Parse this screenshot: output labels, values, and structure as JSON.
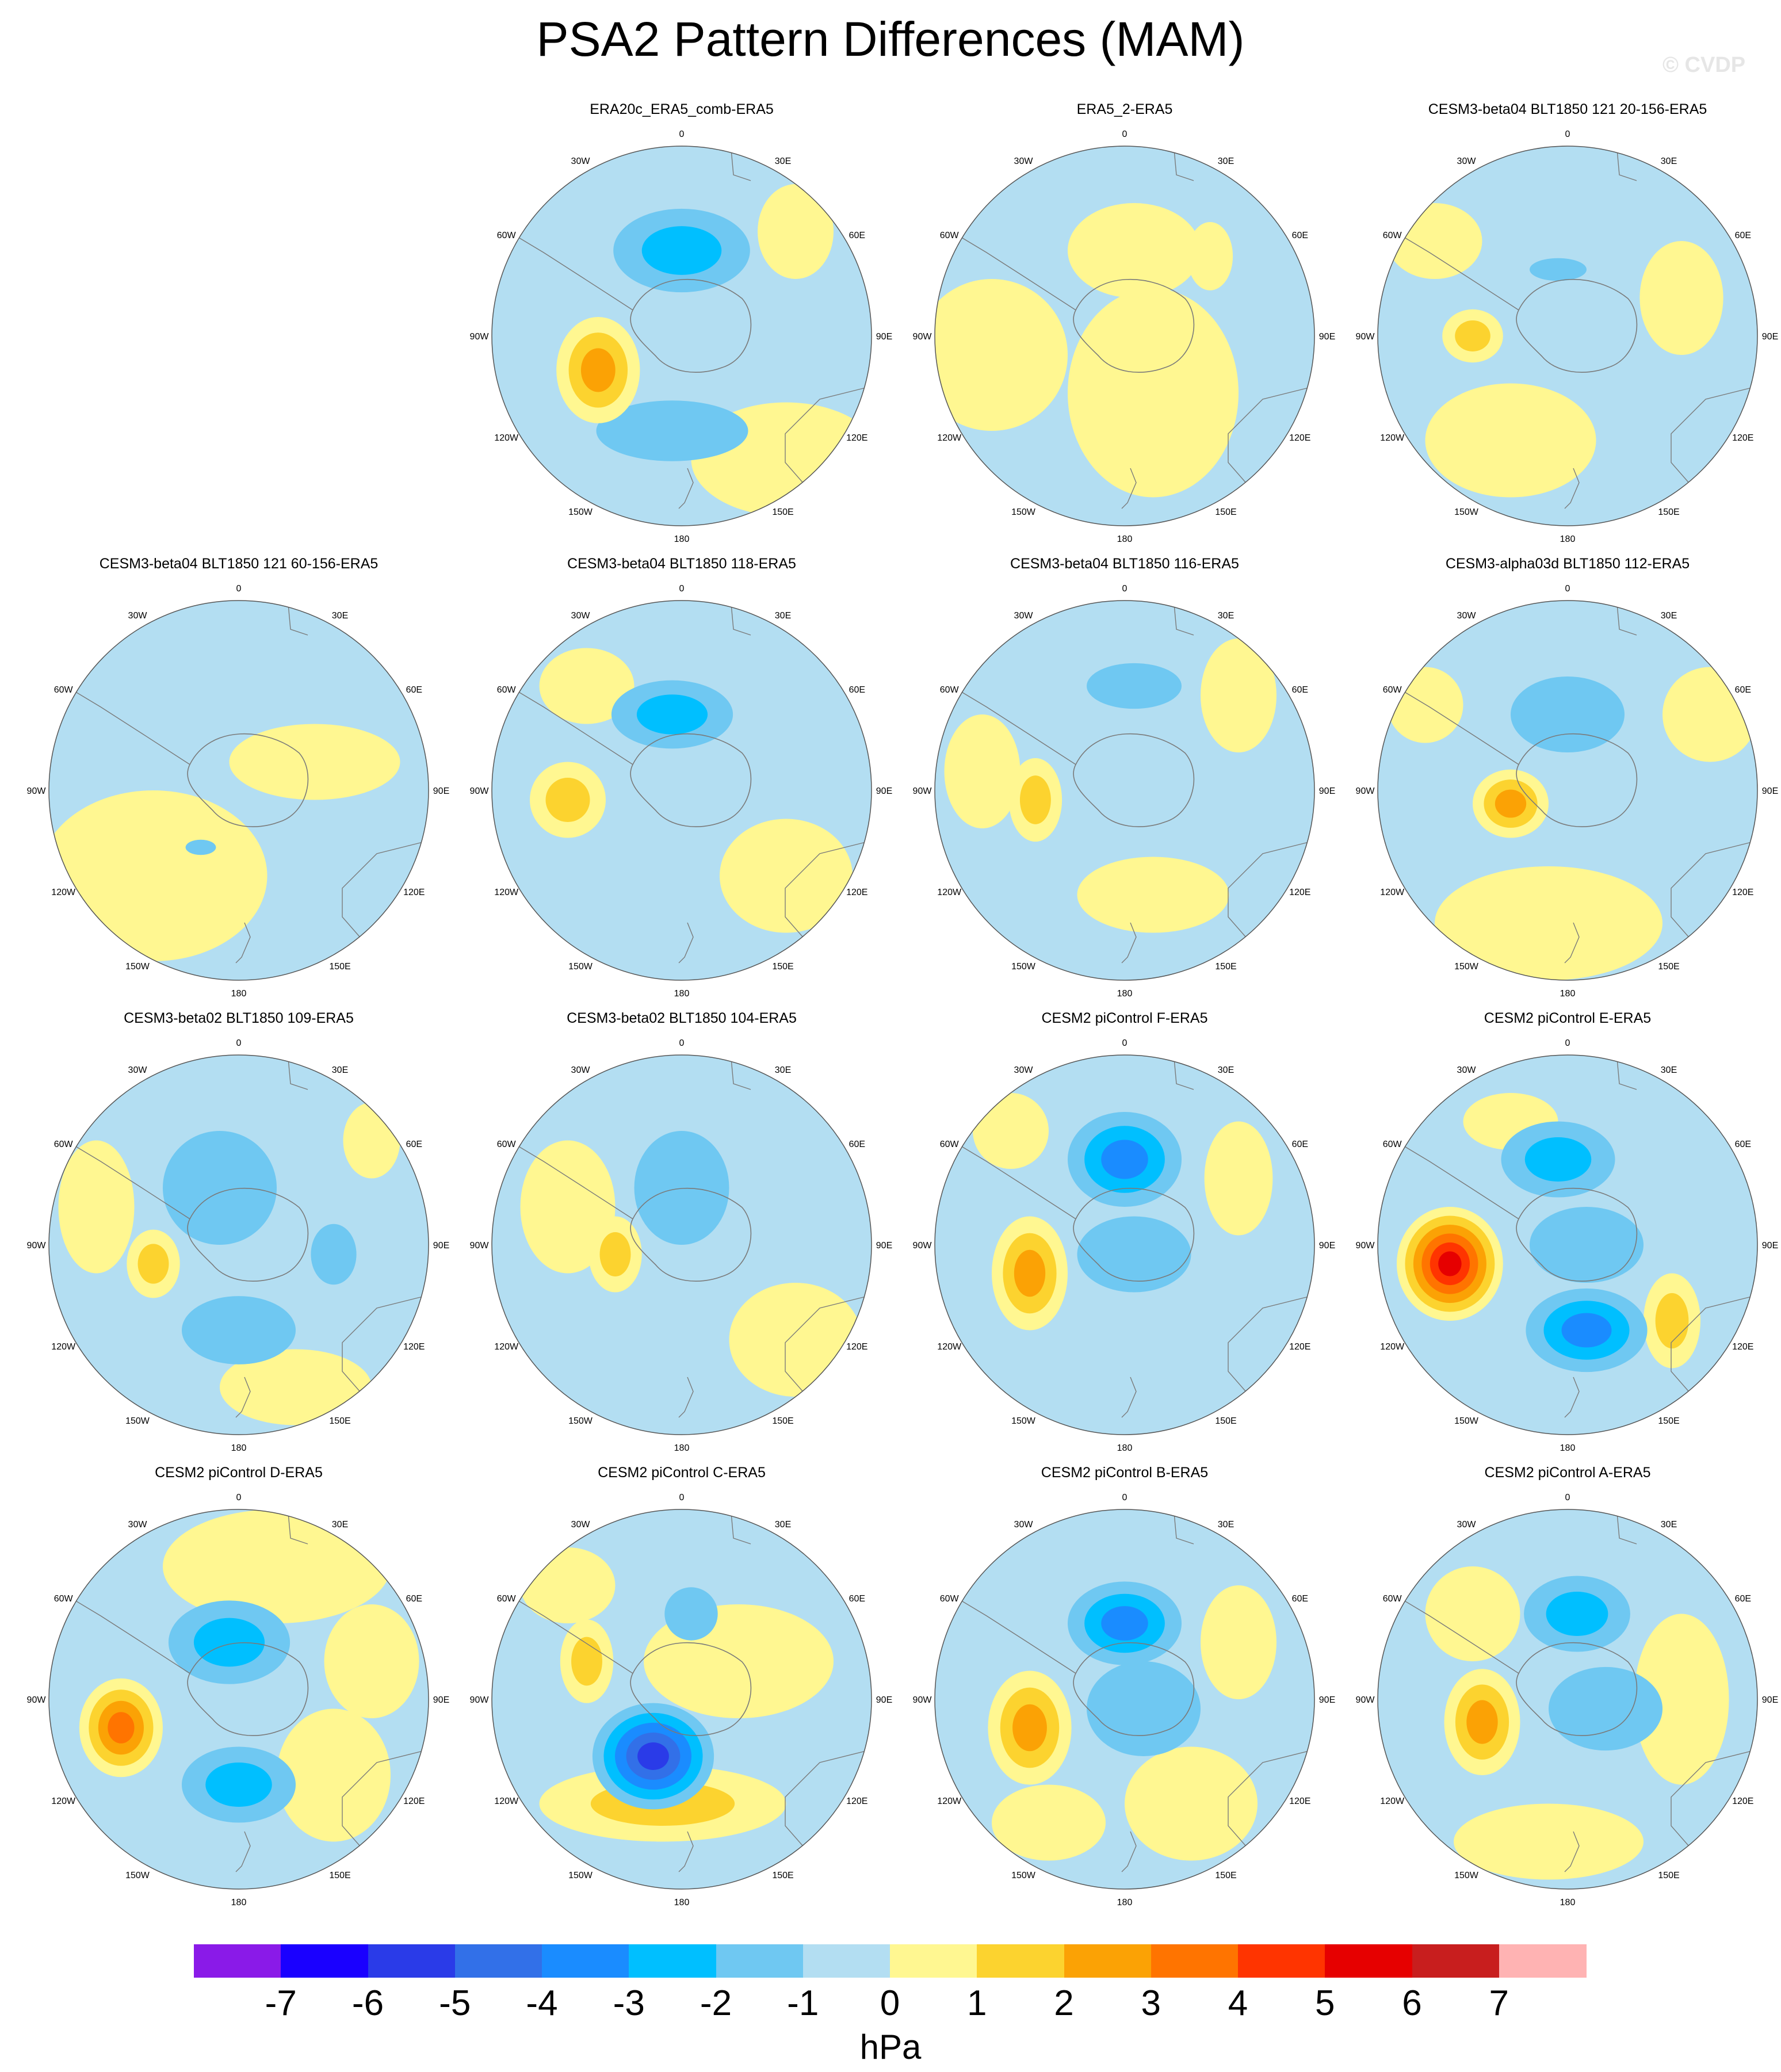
{
  "title": "PSA2 Pattern Differences (MAM)",
  "watermark": "© CVDP",
  "lon_labels": [
    "0",
    "30E",
    "60E",
    "90E",
    "120E",
    "150E",
    "180",
    "150W",
    "120W",
    "90W",
    "60W",
    "30W"
  ],
  "panels": [
    {
      "title": "ERA20c_ERA5_comb-ERA5",
      "blobs": [
        {
          "dx": 0.0,
          "dy": -0.45,
          "rx": 0.36,
          "ry": 0.22,
          "lvl": -2
        },
        {
          "dx": -0.44,
          "dy": 0.18,
          "rx": 0.22,
          "ry": 0.28,
          "lvl": 3
        },
        {
          "dx": -0.05,
          "dy": 0.5,
          "rx": 0.4,
          "ry": 0.16,
          "lvl": -1.5
        },
        {
          "dx": 0.55,
          "dy": 0.65,
          "rx": 0.5,
          "ry": 0.3,
          "lvl": 0.5
        },
        {
          "dx": 0.6,
          "dy": -0.55,
          "rx": 0.2,
          "ry": 0.25,
          "lvl": 0.5
        }
      ]
    },
    {
      "title": "ERA5_2-ERA5",
      "blobs": [
        {
          "dx": -0.7,
          "dy": 0.1,
          "rx": 0.4,
          "ry": 0.4,
          "lvl": 0.5
        },
        {
          "dx": 0.15,
          "dy": 0.3,
          "rx": 0.45,
          "ry": 0.55,
          "lvl": 0.5
        },
        {
          "dx": 0.05,
          "dy": -0.45,
          "rx": 0.35,
          "ry": 0.25,
          "lvl": 0.5
        },
        {
          "dx": 0.45,
          "dy": -0.42,
          "rx": 0.12,
          "ry": 0.18,
          "lvl": 0.5
        }
      ]
    },
    {
      "title": "CESM3-beta04 BLT1850 121 20-156-ERA5",
      "blobs": [
        {
          "dx": -0.5,
          "dy": 0.0,
          "rx": 0.16,
          "ry": 0.14,
          "lvl": 1.5
        },
        {
          "dx": -0.3,
          "dy": 0.55,
          "rx": 0.45,
          "ry": 0.3,
          "lvl": 0.5
        },
        {
          "dx": 0.6,
          "dy": -0.2,
          "rx": 0.22,
          "ry": 0.3,
          "lvl": 0.5
        },
        {
          "dx": -0.7,
          "dy": -0.5,
          "rx": 0.25,
          "ry": 0.2,
          "lvl": 0.5
        },
        {
          "dx": -0.05,
          "dy": -0.35,
          "rx": 0.15,
          "ry": 0.06,
          "lvl": -1.5
        }
      ]
    },
    {
      "title": "CESM3-beta04 BLT1850 121 60-156-ERA5",
      "blobs": [
        {
          "dx": -0.45,
          "dy": 0.45,
          "rx": 0.6,
          "ry": 0.45,
          "lvl": 0.5
        },
        {
          "dx": 0.4,
          "dy": -0.15,
          "rx": 0.45,
          "ry": 0.2,
          "lvl": 0.5
        },
        {
          "dx": -0.2,
          "dy": 0.3,
          "rx": 0.08,
          "ry": 0.04,
          "lvl": -1.5
        }
      ]
    },
    {
      "title": "CESM3-beta04 BLT1850 118-ERA5",
      "blobs": [
        {
          "dx": -0.05,
          "dy": -0.4,
          "rx": 0.32,
          "ry": 0.18,
          "lvl": -2
        },
        {
          "dx": -0.6,
          "dy": 0.05,
          "rx": 0.2,
          "ry": 0.2,
          "lvl": 1.5
        },
        {
          "dx": 0.55,
          "dy": 0.45,
          "rx": 0.35,
          "ry": 0.3,
          "lvl": 0.5
        },
        {
          "dx": -0.5,
          "dy": -0.55,
          "rx": 0.25,
          "ry": 0.2,
          "lvl": 0.5
        }
      ]
    },
    {
      "title": "CESM3-beta04 BLT1850 116-ERA5",
      "blobs": [
        {
          "dx": 0.05,
          "dy": -0.55,
          "rx": 0.25,
          "ry": 0.12,
          "lvl": -1.5
        },
        {
          "dx": -0.47,
          "dy": 0.05,
          "rx": 0.14,
          "ry": 0.22,
          "lvl": 1.5
        },
        {
          "dx": 0.15,
          "dy": 0.55,
          "rx": 0.4,
          "ry": 0.2,
          "lvl": 0.5
        },
        {
          "dx": -0.75,
          "dy": -0.1,
          "rx": 0.2,
          "ry": 0.3,
          "lvl": 0.5
        },
        {
          "dx": 0.6,
          "dy": -0.5,
          "rx": 0.2,
          "ry": 0.3,
          "lvl": 0.5
        }
      ]
    },
    {
      "title": "CESM3-alpha03d BLT1850 112-ERA5",
      "blobs": [
        {
          "dx": 0.0,
          "dy": -0.4,
          "rx": 0.3,
          "ry": 0.2,
          "lvl": -1.5
        },
        {
          "dx": -0.3,
          "dy": 0.07,
          "rx": 0.2,
          "ry": 0.18,
          "lvl": 2.5
        },
        {
          "dx": -0.1,
          "dy": 0.7,
          "rx": 0.6,
          "ry": 0.3,
          "lvl": 0.5
        },
        {
          "dx": 0.75,
          "dy": -0.4,
          "rx": 0.25,
          "ry": 0.25,
          "lvl": 0.5
        },
        {
          "dx": -0.75,
          "dy": -0.45,
          "rx": 0.2,
          "ry": 0.2,
          "lvl": 0.5
        }
      ]
    },
    {
      "title": "CESM3-beta02 BLT1850 109-ERA5",
      "blobs": [
        {
          "dx": -0.1,
          "dy": -0.3,
          "rx": 0.3,
          "ry": 0.3,
          "lvl": -1.5
        },
        {
          "dx": -0.45,
          "dy": 0.1,
          "rx": 0.14,
          "ry": 0.18,
          "lvl": 1.5
        },
        {
          "dx": 0.0,
          "dy": 0.45,
          "rx": 0.3,
          "ry": 0.18,
          "lvl": -1.5
        },
        {
          "dx": 0.5,
          "dy": 0.05,
          "rx": 0.12,
          "ry": 0.16,
          "lvl": -1.5
        },
        {
          "dx": -0.75,
          "dy": -0.2,
          "rx": 0.2,
          "ry": 0.35,
          "lvl": 0.5
        },
        {
          "dx": 0.3,
          "dy": 0.75,
          "rx": 0.4,
          "ry": 0.2,
          "lvl": 0.5
        },
        {
          "dx": 0.7,
          "dy": -0.55,
          "rx": 0.15,
          "ry": 0.2,
          "lvl": 0.5
        }
      ]
    },
    {
      "title": "CESM3-beta02 BLT1850 104-ERA5",
      "blobs": [
        {
          "dx": 0.0,
          "dy": -0.3,
          "rx": 0.25,
          "ry": 0.3,
          "lvl": -1.5
        },
        {
          "dx": -0.35,
          "dy": 0.05,
          "rx": 0.14,
          "ry": 0.2,
          "lvl": 1.5
        },
        {
          "dx": 0.6,
          "dy": 0.5,
          "rx": 0.35,
          "ry": 0.3,
          "lvl": 0.5
        },
        {
          "dx": -0.6,
          "dy": -0.2,
          "rx": 0.25,
          "ry": 0.35,
          "lvl": 0.5
        }
      ]
    },
    {
      "title": "CESM2 piControl F-ERA5",
      "blobs": [
        {
          "dx": 0.0,
          "dy": -0.45,
          "rx": 0.3,
          "ry": 0.25,
          "lvl": -3.5
        },
        {
          "dx": -0.5,
          "dy": 0.15,
          "rx": 0.2,
          "ry": 0.3,
          "lvl": 2.5
        },
        {
          "dx": 0.05,
          "dy": 0.05,
          "rx": 0.3,
          "ry": 0.2,
          "lvl": -1.5
        },
        {
          "dx": 0.6,
          "dy": -0.35,
          "rx": 0.18,
          "ry": 0.3,
          "lvl": 0.5
        },
        {
          "dx": -0.6,
          "dy": -0.6,
          "rx": 0.2,
          "ry": 0.2,
          "lvl": 0.5
        }
      ]
    },
    {
      "title": "CESM2 piControl E-ERA5",
      "blobs": [
        {
          "dx": -0.62,
          "dy": 0.1,
          "rx": 0.28,
          "ry": 0.3,
          "lvl": 5.5
        },
        {
          "dx": -0.05,
          "dy": -0.45,
          "rx": 0.3,
          "ry": 0.2,
          "lvl": -2.5
        },
        {
          "dx": 0.1,
          "dy": 0.45,
          "rx": 0.32,
          "ry": 0.22,
          "lvl": -3.5
        },
        {
          "dx": 0.55,
          "dy": 0.4,
          "rx": 0.15,
          "ry": 0.25,
          "lvl": 2
        },
        {
          "dx": 0.1,
          "dy": 0.0,
          "rx": 0.3,
          "ry": 0.2,
          "lvl": -1.5
        },
        {
          "dx": -0.3,
          "dy": -0.65,
          "rx": 0.25,
          "ry": 0.15,
          "lvl": 0.5
        }
      ]
    },
    {
      "title": "CESM2 piControl D-ERA5",
      "blobs": [
        {
          "dx": -0.62,
          "dy": 0.15,
          "rx": 0.22,
          "ry": 0.26,
          "lvl": 4
        },
        {
          "dx": -0.05,
          "dy": -0.3,
          "rx": 0.32,
          "ry": 0.22,
          "lvl": -2.5
        },
        {
          "dx": 0.0,
          "dy": 0.45,
          "rx": 0.3,
          "ry": 0.2,
          "lvl": -2.5
        },
        {
          "dx": 0.5,
          "dy": 0.4,
          "rx": 0.3,
          "ry": 0.35,
          "lvl": 0.5
        },
        {
          "dx": 0.2,
          "dy": -0.7,
          "rx": 0.6,
          "ry": 0.3,
          "lvl": 0.5
        },
        {
          "dx": 0.7,
          "dy": -0.2,
          "rx": 0.25,
          "ry": 0.3,
          "lvl": 0.5
        }
      ]
    },
    {
      "title": "CESM2 piControl C-ERA5",
      "blobs": [
        {
          "dx": -0.15,
          "dy": 0.3,
          "rx": 0.32,
          "ry": 0.28,
          "lvl": -5.5
        },
        {
          "dx": -0.1,
          "dy": 0.55,
          "rx": 0.65,
          "ry": 0.2,
          "lvl": 2
        },
        {
          "dx": -0.5,
          "dy": -0.2,
          "rx": 0.14,
          "ry": 0.22,
          "lvl": 2
        },
        {
          "dx": 0.05,
          "dy": -0.45,
          "rx": 0.14,
          "ry": 0.14,
          "lvl": -1.5
        },
        {
          "dx": 0.3,
          "dy": -0.2,
          "rx": 0.5,
          "ry": 0.3,
          "lvl": 0.5
        },
        {
          "dx": -0.6,
          "dy": -0.6,
          "rx": 0.25,
          "ry": 0.2,
          "lvl": 0.5
        }
      ]
    },
    {
      "title": "CESM2 piControl B-ERA5",
      "blobs": [
        {
          "dx": 0.0,
          "dy": -0.4,
          "rx": 0.3,
          "ry": 0.22,
          "lvl": -3
        },
        {
          "dx": -0.5,
          "dy": 0.15,
          "rx": 0.22,
          "ry": 0.3,
          "lvl": 2.5
        },
        {
          "dx": 0.1,
          "dy": 0.05,
          "rx": 0.3,
          "ry": 0.25,
          "lvl": -1.5
        },
        {
          "dx": 0.35,
          "dy": 0.55,
          "rx": 0.35,
          "ry": 0.3,
          "lvl": 0.5
        },
        {
          "dx": -0.4,
          "dy": 0.65,
          "rx": 0.3,
          "ry": 0.2,
          "lvl": 0.5
        },
        {
          "dx": 0.6,
          "dy": -0.3,
          "rx": 0.2,
          "ry": 0.3,
          "lvl": 0.5
        }
      ]
    },
    {
      "title": "CESM2 piControl A-ERA5",
      "blobs": [
        {
          "dx": 0.05,
          "dy": -0.45,
          "rx": 0.28,
          "ry": 0.2,
          "lvl": -2.5
        },
        {
          "dx": -0.45,
          "dy": 0.12,
          "rx": 0.2,
          "ry": 0.28,
          "lvl": 2.5
        },
        {
          "dx": 0.2,
          "dy": 0.05,
          "rx": 0.3,
          "ry": 0.22,
          "lvl": -1.5
        },
        {
          "dx": 0.6,
          "dy": 0.0,
          "rx": 0.25,
          "ry": 0.45,
          "lvl": 0.5
        },
        {
          "dx": -0.5,
          "dy": -0.45,
          "rx": 0.25,
          "ry": 0.25,
          "lvl": 0.5
        },
        {
          "dx": -0.1,
          "dy": 0.75,
          "rx": 0.5,
          "ry": 0.2,
          "lvl": 0.5
        }
      ]
    }
  ],
  "colorbar": {
    "colors": [
      "#8a1ae8",
      "#1a00ff",
      "#2a3be8",
      "#3270e8",
      "#1a8cff",
      "#00bfff",
      "#6fc8f2",
      "#b3def2",
      "#fff791",
      "#fcd32f",
      "#fba205",
      "#ff7400",
      "#ff3400",
      "#e60000",
      "#c81e1e",
      "#ffb3b3"
    ],
    "ticks": [
      "-7",
      "-6",
      "-5",
      "-4",
      "-3",
      "-2",
      "-1",
      "0",
      "1",
      "2",
      "3",
      "4",
      "5",
      "6",
      "7"
    ],
    "units": "hPa"
  }
}
